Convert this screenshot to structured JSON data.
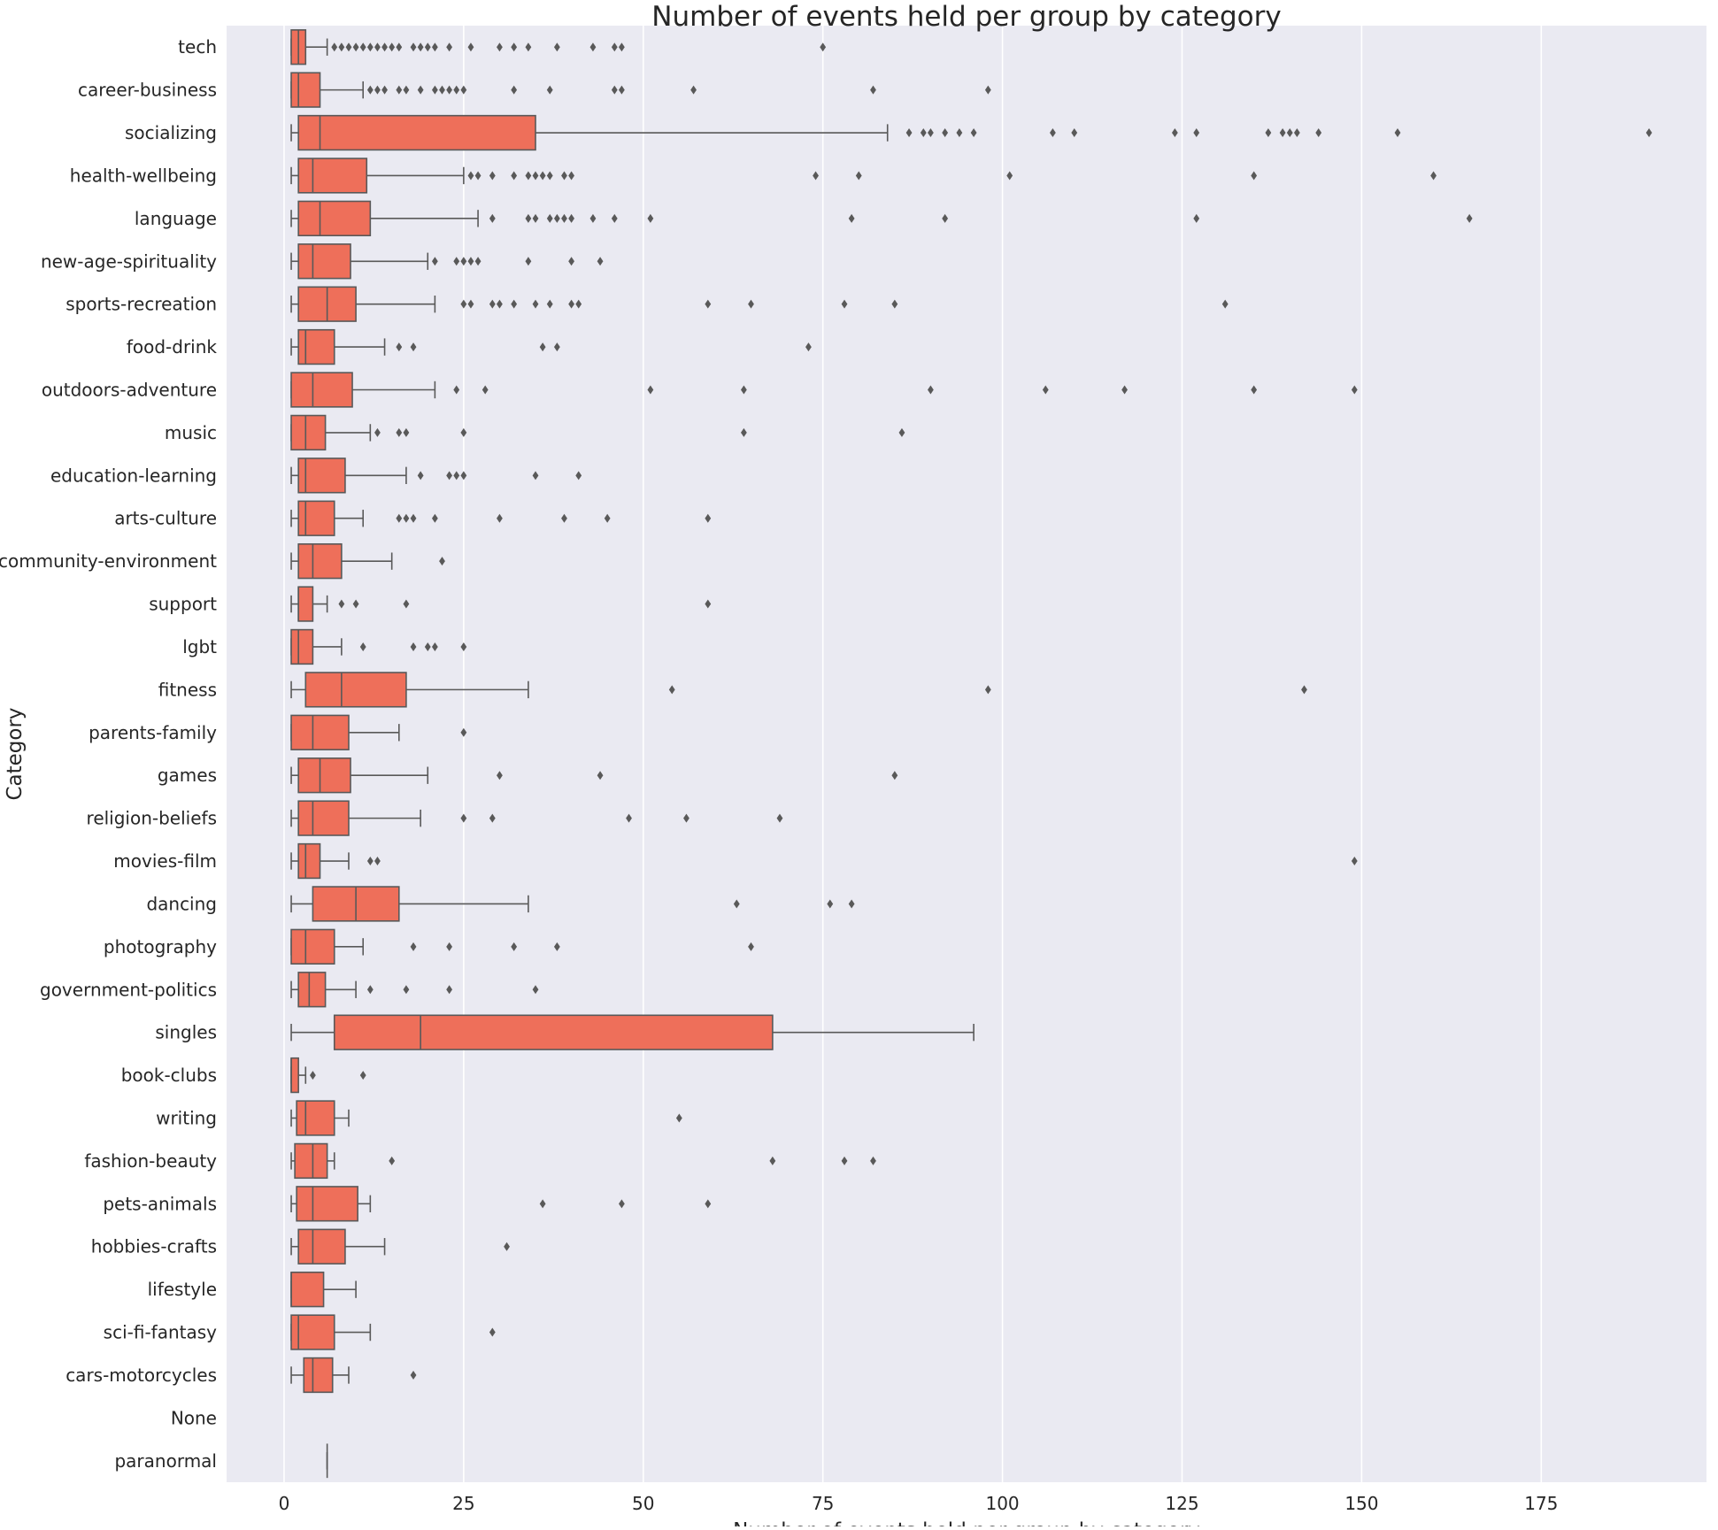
{
  "chart_data": {
    "type": "boxplot",
    "orientation": "horizontal",
    "title": "Number of events held per group by category",
    "xlabel": "Number of events held per group by category",
    "ylabel": "Category",
    "xlim": [
      -8,
      198
    ],
    "xticks": [
      0,
      25,
      50,
      75,
      100,
      125,
      150,
      175
    ],
    "grid": true,
    "colors": {
      "background": "#EAEAF2",
      "box_fill": "#EE6F5A",
      "line": "#595959",
      "grid": "#FFFFFF",
      "text": "#262626"
    },
    "categories": [
      {
        "name": "tech",
        "whislo": 1,
        "q1": 1,
        "med": 2,
        "q3": 3,
        "whishi": 6,
        "fliers": [
          7,
          8,
          9,
          10,
          11,
          12,
          13,
          14,
          15,
          16,
          18,
          19,
          20,
          21,
          23,
          26,
          30,
          32,
          34,
          38,
          43,
          46,
          47,
          75
        ]
      },
      {
        "name": "career-business",
        "whislo": 1,
        "q1": 1,
        "med": 2,
        "q3": 5,
        "whishi": 11,
        "fliers": [
          12,
          13,
          14,
          16,
          17,
          19,
          21,
          22,
          23,
          24,
          25,
          32,
          37,
          46,
          47,
          57,
          82,
          98
        ]
      },
      {
        "name": "socializing",
        "whislo": 1,
        "q1": 2,
        "med": 5,
        "q3": 35,
        "whishi": 84,
        "fliers": [
          87,
          89,
          90,
          92,
          94,
          96,
          107,
          110,
          124,
          127,
          137,
          139,
          140,
          141,
          144,
          155,
          190
        ]
      },
      {
        "name": "health-wellbeing",
        "whislo": 1,
        "q1": 2,
        "med": 4,
        "q3": 11.5,
        "whishi": 25,
        "fliers": [
          26,
          27,
          29,
          32,
          34,
          35,
          36,
          37,
          39,
          40,
          74,
          80,
          101,
          135,
          160
        ]
      },
      {
        "name": "language",
        "whislo": 1,
        "q1": 2,
        "med": 5,
        "q3": 12,
        "whishi": 27,
        "fliers": [
          29,
          34,
          35,
          37,
          38,
          39,
          40,
          43,
          46,
          51,
          79,
          92,
          127,
          165
        ]
      },
      {
        "name": "new-age-spirituality",
        "whislo": 1,
        "q1": 2,
        "med": 4,
        "q3": 9.25,
        "whishi": 20,
        "fliers": [
          21,
          24,
          25,
          26,
          27,
          34,
          40,
          44
        ]
      },
      {
        "name": "sports-recreation",
        "whislo": 1,
        "q1": 2,
        "med": 6,
        "q3": 10,
        "whishi": 21,
        "fliers": [
          25,
          26,
          29,
          30,
          32,
          35,
          37,
          40,
          41,
          59,
          65,
          78,
          85,
          131
        ]
      },
      {
        "name": "food-drink",
        "whislo": 1,
        "q1": 2,
        "med": 3,
        "q3": 7,
        "whishi": 14,
        "fliers": [
          16,
          18,
          36,
          38,
          73
        ]
      },
      {
        "name": "outdoors-adventure",
        "whislo": 1,
        "q1": 1,
        "med": 4,
        "q3": 9.5,
        "whishi": 21,
        "fliers": [
          24,
          28,
          51,
          64,
          90,
          106,
          117,
          135,
          149
        ]
      },
      {
        "name": "music",
        "whislo": 1,
        "q1": 1,
        "med": 3,
        "q3": 5.75,
        "whishi": 12,
        "fliers": [
          13,
          16,
          17,
          25,
          64,
          86
        ]
      },
      {
        "name": "education-learning",
        "whislo": 1,
        "q1": 2,
        "med": 3,
        "q3": 8.5,
        "whishi": 17,
        "fliers": [
          19,
          23,
          24,
          25,
          35,
          41
        ]
      },
      {
        "name": "arts-culture",
        "whislo": 1,
        "q1": 2,
        "med": 3,
        "q3": 7,
        "whishi": 11,
        "fliers": [
          16,
          17,
          18,
          21,
          30,
          39,
          45,
          59
        ]
      },
      {
        "name": "community-environment",
        "whislo": 1,
        "q1": 2,
        "med": 4,
        "q3": 8,
        "whishi": 15,
        "fliers": [
          22
        ]
      },
      {
        "name": "support",
        "whislo": 1,
        "q1": 2,
        "med": 2,
        "q3": 4,
        "whishi": 6,
        "fliers": [
          8,
          10,
          17,
          59
        ]
      },
      {
        "name": "lgbt",
        "whislo": 1,
        "q1": 1,
        "med": 2,
        "q3": 4,
        "whishi": 8,
        "fliers": [
          11,
          18,
          20,
          21,
          25
        ]
      },
      {
        "name": "fitness",
        "whislo": 1,
        "q1": 3,
        "med": 8,
        "q3": 17,
        "whishi": 34,
        "fliers": [
          54,
          98,
          142
        ]
      },
      {
        "name": "parents-family",
        "whislo": 1,
        "q1": 1,
        "med": 4,
        "q3": 9,
        "whishi": 16,
        "fliers": [
          25
        ]
      },
      {
        "name": "games",
        "whislo": 1,
        "q1": 2,
        "med": 5,
        "q3": 9.25,
        "whishi": 20,
        "fliers": [
          30,
          44,
          85
        ]
      },
      {
        "name": "religion-beliefs",
        "whislo": 1,
        "q1": 2,
        "med": 4,
        "q3": 9,
        "whishi": 19,
        "fliers": [
          25,
          29,
          48,
          56,
          69
        ]
      },
      {
        "name": "movies-film",
        "whislo": 1,
        "q1": 2,
        "med": 3,
        "q3": 5,
        "whishi": 9,
        "fliers": [
          12,
          13,
          149
        ]
      },
      {
        "name": "dancing",
        "whislo": 1,
        "q1": 4,
        "med": 10,
        "q3": 16,
        "whishi": 34,
        "fliers": [
          63,
          76,
          79
        ]
      },
      {
        "name": "photography",
        "whislo": 1,
        "q1": 1,
        "med": 3,
        "q3": 7,
        "whishi": 11,
        "fliers": [
          18,
          23,
          32,
          38,
          65
        ]
      },
      {
        "name": "government-politics",
        "whislo": 1,
        "q1": 2,
        "med": 3.5,
        "q3": 5.75,
        "whishi": 10,
        "fliers": [
          12,
          17,
          23,
          35
        ]
      },
      {
        "name": "singles",
        "whislo": 1,
        "q1": 7,
        "med": 19,
        "q3": 68,
        "whishi": 96,
        "fliers": []
      },
      {
        "name": "book-clubs",
        "whislo": 1,
        "q1": 1,
        "med": 1,
        "q3": 2,
        "whishi": 3,
        "fliers": [
          4,
          11
        ]
      },
      {
        "name": "writing",
        "whislo": 1,
        "q1": 1.75,
        "med": 3,
        "q3": 7,
        "whishi": 9,
        "fliers": [
          55
        ]
      },
      {
        "name": "fashion-beauty",
        "whislo": 1,
        "q1": 1.5,
        "med": 4,
        "q3": 6,
        "whishi": 7,
        "fliers": [
          15,
          68,
          78,
          82
        ]
      },
      {
        "name": "pets-animals",
        "whislo": 1,
        "q1": 1.75,
        "med": 4,
        "q3": 10.25,
        "whishi": 12,
        "fliers": [
          36,
          47,
          59
        ]
      },
      {
        "name": "hobbies-crafts",
        "whislo": 1,
        "q1": 2,
        "med": 4,
        "q3": 8.5,
        "whishi": 14,
        "fliers": [
          31
        ]
      },
      {
        "name": "lifestyle",
        "whislo": 1,
        "q1": 1,
        "med": 1,
        "q3": 5.5,
        "whishi": 10,
        "fliers": []
      },
      {
        "name": "sci-fi-fantasy",
        "whislo": 1,
        "q1": 1,
        "med": 2,
        "q3": 7,
        "whishi": 12,
        "fliers": [
          29
        ]
      },
      {
        "name": "cars-motorcycles",
        "whislo": 1,
        "q1": 2.75,
        "med": 4,
        "q3": 6.75,
        "whishi": 9,
        "fliers": [
          18
        ]
      },
      {
        "name": "None",
        "whislo": null,
        "q1": null,
        "med": null,
        "q3": null,
        "whishi": null,
        "fliers": []
      },
      {
        "name": "paranormal",
        "whislo": 6,
        "q1": 6,
        "med": 6,
        "q3": 6,
        "whishi": 6,
        "fliers": []
      }
    ]
  }
}
